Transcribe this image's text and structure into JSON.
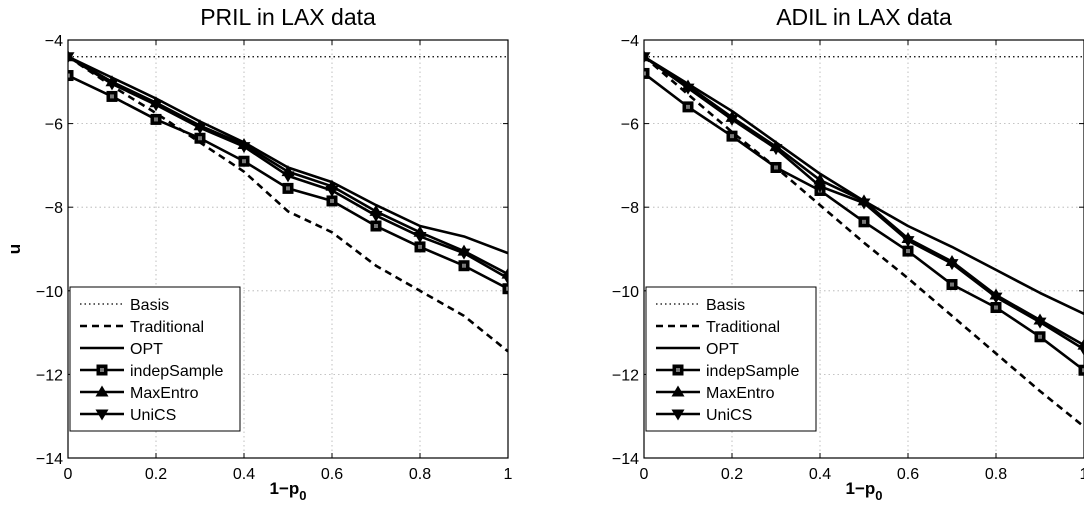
{
  "chart_data": [
    {
      "type": "line",
      "title": "PRIL in LAX data",
      "xlabel": "1−p",
      "xlabel_sub": "0",
      "ylabel": "u",
      "xlim": [
        0,
        1
      ],
      "ylim": [
        -14,
        -4
      ],
      "x_ticks": [
        "0",
        "0.2",
        "0.4",
        "0.6",
        "0.8",
        "1"
      ],
      "y_ticks": [
        "−4",
        "−6",
        "−8",
        "−10",
        "−12",
        "−14"
      ],
      "grid": true,
      "legend_position": "bottom-left",
      "x": [
        0,
        0.1,
        0.2,
        0.3,
        0.4,
        0.5,
        0.6,
        0.7,
        0.8,
        0.9,
        1.0
      ],
      "series": [
        {
          "name": "Basis",
          "style": "dotted",
          "marker": "none",
          "values": [
            -4.4,
            -4.4,
            -4.4,
            -4.4,
            -4.4,
            -4.4,
            -4.4,
            -4.4,
            -4.4,
            -4.4,
            -4.4
          ]
        },
        {
          "name": "Traditional",
          "style": "dashed",
          "marker": "none",
          "values": [
            -4.4,
            -5.1,
            -5.75,
            -6.45,
            -7.15,
            -8.1,
            -8.6,
            -9.4,
            -10.0,
            -10.6,
            -11.45
          ]
        },
        {
          "name": "OPT",
          "style": "solid",
          "marker": "none",
          "values": [
            -4.4,
            -4.9,
            -5.4,
            -5.95,
            -6.45,
            -7.05,
            -7.4,
            -7.95,
            -8.45,
            -8.7,
            -9.1
          ]
        },
        {
          "name": "indepSample",
          "style": "solid",
          "marker": "square",
          "values": [
            -4.85,
            -5.35,
            -5.9,
            -6.35,
            -6.9,
            -7.55,
            -7.85,
            -8.45,
            -8.95,
            -9.4,
            -9.95
          ]
        },
        {
          "name": "MaxEntro",
          "style": "solid",
          "marker": "triangle-up",
          "values": [
            -4.4,
            -5.0,
            -5.5,
            -6.05,
            -6.5,
            -7.15,
            -7.5,
            -8.1,
            -8.6,
            -9.05,
            -9.6
          ]
        },
        {
          "name": "UniCS",
          "style": "solid",
          "marker": "triangle-down",
          "values": [
            -4.4,
            -5.05,
            -5.55,
            -6.1,
            -6.55,
            -7.25,
            -7.6,
            -8.2,
            -8.7,
            -9.1,
            -9.7
          ]
        }
      ]
    },
    {
      "type": "line",
      "title": "ADIL in LAX data",
      "xlabel": "1−p",
      "xlabel_sub": "0",
      "ylabel": "",
      "xlim": [
        0,
        1
      ],
      "ylim": [
        -14,
        -4
      ],
      "x_ticks": [
        "0",
        "0.2",
        "0.4",
        "0.6",
        "0.8",
        "1"
      ],
      "y_ticks": [
        "−4",
        "−6",
        "−8",
        "−10",
        "−12",
        "−14"
      ],
      "grid": true,
      "legend_position": "bottom-left",
      "x": [
        0,
        0.1,
        0.2,
        0.3,
        0.4,
        0.5,
        0.6,
        0.7,
        0.8,
        0.9,
        1.0
      ],
      "series": [
        {
          "name": "Basis",
          "style": "dotted",
          "marker": "none",
          "values": [
            -4.4,
            -4.4,
            -4.4,
            -4.4,
            -4.4,
            -4.4,
            -4.4,
            -4.4,
            -4.4,
            -4.4,
            -4.4
          ]
        },
        {
          "name": "Traditional",
          "style": "dashed",
          "marker": "none",
          "values": [
            -4.4,
            -5.3,
            -6.2,
            -7.05,
            -7.95,
            -8.85,
            -9.7,
            -10.6,
            -11.5,
            -12.4,
            -13.25
          ]
        },
        {
          "name": "OPT",
          "style": "solid",
          "marker": "none",
          "values": [
            -4.4,
            -5.05,
            -5.7,
            -6.45,
            -7.2,
            -7.85,
            -8.45,
            -8.95,
            -9.5,
            -10.05,
            -10.55
          ]
        },
        {
          "name": "indepSample",
          "style": "solid",
          "marker": "square",
          "values": [
            -4.8,
            -5.6,
            -6.3,
            -7.05,
            -7.6,
            -8.35,
            -9.05,
            -9.85,
            -10.4,
            -11.1,
            -11.9
          ]
        },
        {
          "name": "MaxEntro",
          "style": "solid",
          "marker": "triangle-up",
          "values": [
            -4.4,
            -5.1,
            -5.85,
            -6.55,
            -7.35,
            -7.85,
            -8.75,
            -9.3,
            -10.1,
            -10.7,
            -11.3
          ]
        },
        {
          "name": "UniCS",
          "style": "solid",
          "marker": "triangle-down",
          "values": [
            -4.4,
            -5.15,
            -5.9,
            -6.6,
            -7.5,
            -7.9,
            -8.8,
            -9.35,
            -10.15,
            -10.75,
            -11.4
          ]
        }
      ]
    }
  ]
}
